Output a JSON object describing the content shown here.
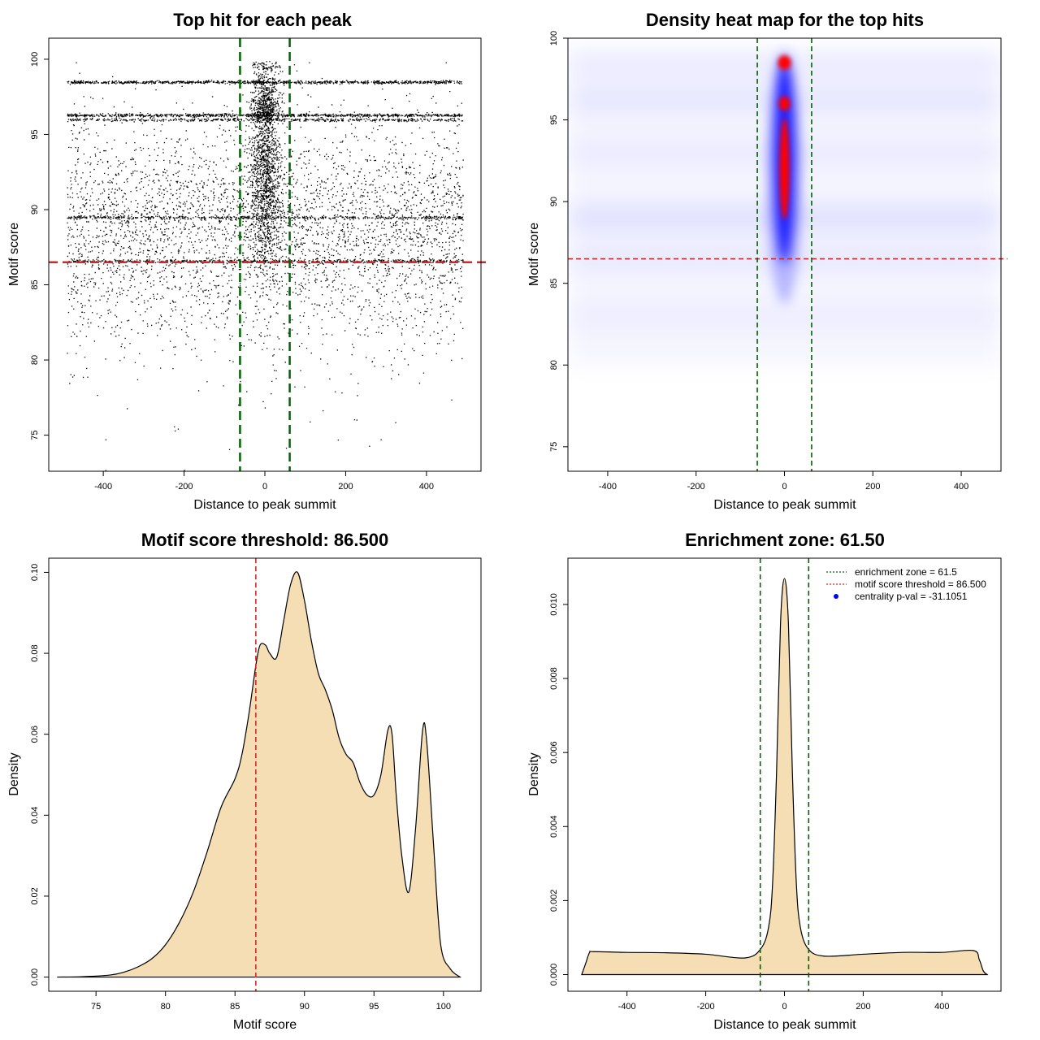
{
  "colors": {
    "threshold": "#d62728",
    "zone": "#006400",
    "fill": "#f5deb3",
    "points": "#000000",
    "heat_low": "#ffffff",
    "heat_mid": "#0000ff",
    "heat_high": "#ff0000",
    "centrality": "#0000ff"
  },
  "chart_data": [
    {
      "type": "scatter",
      "title": "Top hit for each peak",
      "xlabel": "Distance to peak summit",
      "ylabel": "Motif score",
      "xlim": [
        -535,
        535
      ],
      "ylim": [
        72.6,
        101.4
      ],
      "xticks": [
        -400,
        -200,
        0,
        200,
        400
      ],
      "yticks": [
        75,
        80,
        85,
        90,
        95,
        100
      ],
      "threshold_y": 86.5,
      "zone_x": [
        -61.5,
        61.5
      ],
      "point_x_range": [
        -490,
        490
      ],
      "central_band_halfwidth": 60,
      "score_bands": [
        98.5,
        96.3,
        96.0,
        89.5,
        86.6
      ],
      "note": "approximately 60,000 points; dense central column near x=0 between scores 84 and 99.8"
    },
    {
      "type": "heatmap",
      "title": "Density heat map for the top hits",
      "xlabel": "Distance to peak summit",
      "ylabel": "Motif score",
      "xlim": [
        -490,
        490
      ],
      "ylim": [
        73.5,
        100
      ],
      "xticks": [
        -400,
        -200,
        0,
        200,
        400
      ],
      "yticks": [
        75,
        80,
        85,
        90,
        95,
        100
      ],
      "threshold_y": 86.5,
      "zone_x": [
        -61.5,
        61.5
      ],
      "hotspots": [
        {
          "x": 0,
          "score": 98.5,
          "intensity": "high"
        },
        {
          "x": 0,
          "score": 96.0,
          "intensity": "high"
        },
        {
          "x": 0,
          "score": 92.0,
          "intensity": "high"
        },
        {
          "x": 0,
          "score": 88.0,
          "intensity": "medium"
        },
        {
          "x": 0,
          "score": 85.0,
          "intensity": "low"
        }
      ]
    },
    {
      "type": "area",
      "title": "Motif score threshold: 86.500",
      "xlabel": "Motif score",
      "ylabel": "Density",
      "xlim": [
        71.6,
        102.7
      ],
      "ylim": [
        -0.0035,
        0.1035
      ],
      "xticks": [
        75,
        80,
        85,
        90,
        95,
        100
      ],
      "yticks": [
        0.0,
        0.02,
        0.04,
        0.06,
        0.08,
        0.1
      ],
      "ytick_labels": [
        "0.00",
        "0.02",
        "0.04",
        "0.06",
        "0.08",
        "0.10"
      ],
      "threshold_x": 86.5,
      "x": [
        72.2,
        74,
        76,
        77,
        78,
        79,
        80,
        81,
        82,
        83,
        84,
        85,
        85.5,
        86,
        86.5,
        86.8,
        87.2,
        87.5,
        88,
        88.5,
        89,
        89.5,
        90,
        90.5,
        91,
        91.5,
        92,
        92.5,
        93,
        93.5,
        94,
        94.5,
        95,
        95.5,
        96,
        96.3,
        96.6,
        97,
        97.5,
        98,
        98.5,
        98.8,
        99.3,
        99.8,
        100.5,
        101.2
      ],
      "y": [
        0.0,
        0.0001,
        0.0005,
        0.0012,
        0.0025,
        0.0045,
        0.008,
        0.0135,
        0.021,
        0.031,
        0.042,
        0.049,
        0.055,
        0.065,
        0.077,
        0.082,
        0.082,
        0.08,
        0.079,
        0.088,
        0.097,
        0.1,
        0.093,
        0.083,
        0.075,
        0.071,
        0.066,
        0.059,
        0.055,
        0.053,
        0.048,
        0.045,
        0.045,
        0.05,
        0.061,
        0.06,
        0.045,
        0.03,
        0.021,
        0.037,
        0.061,
        0.058,
        0.032,
        0.008,
        0.002,
        0.0
      ]
    },
    {
      "type": "area",
      "title": "Enrichment zone: 61.50",
      "xlabel": "Distance to peak summit",
      "ylabel": "Density",
      "xlim": [
        -550,
        550
      ],
      "ylim": [
        -0.00045,
        0.01125
      ],
      "xticks": [
        -400,
        -200,
        0,
        200,
        400
      ],
      "yticks": [
        0.0,
        0.002,
        0.004,
        0.006,
        0.008,
        0.01
      ],
      "ytick_labels": [
        "0.000",
        "0.002",
        "0.004",
        "0.006",
        "0.008",
        "0.010"
      ],
      "zone_x": [
        -61.5,
        61.5
      ],
      "x": [
        -515,
        -505,
        -495,
        -485,
        -400,
        -300,
        -200,
        -100,
        -60,
        -40,
        -30,
        -20,
        -10,
        0,
        10,
        20,
        30,
        40,
        60,
        100,
        200,
        300,
        400,
        480,
        495,
        505,
        515
      ],
      "y": [
        0.0,
        0.0003,
        0.0006,
        0.00062,
        0.0006,
        0.00059,
        0.00055,
        0.00045,
        0.0007,
        0.0013,
        0.0025,
        0.0055,
        0.0095,
        0.0107,
        0.0095,
        0.0055,
        0.0025,
        0.0013,
        0.0007,
        0.0005,
        0.00055,
        0.0006,
        0.0006,
        0.00065,
        0.0004,
        0.0001,
        0.0
      ],
      "legend": [
        {
          "label": "enrichment zone = 61.5",
          "style": "green-dotted-line"
        },
        {
          "label": "motif score threshold = 86.500",
          "style": "red-dotted-line"
        },
        {
          "label": "centrality p-val = -31.1051",
          "style": "blue-dot"
        }
      ]
    }
  ]
}
